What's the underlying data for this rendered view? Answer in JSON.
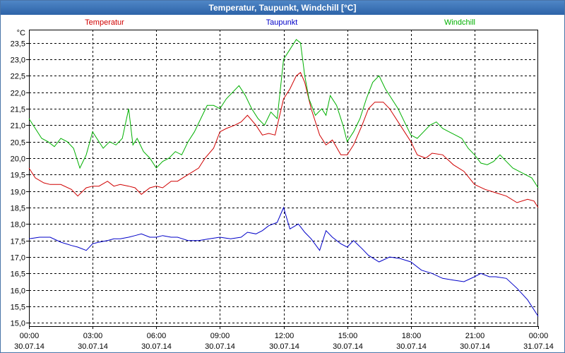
{
  "window": {
    "title": "Temperatur, Taupunkt, Windchill [°C]"
  },
  "colors": {
    "temperatur": "#d00000",
    "taupunkt": "#0000c8",
    "windchill": "#00b000",
    "grid": "#000000",
    "axis": "#000000"
  },
  "chart_data": {
    "type": "line",
    "title": "Temperatur, Taupunkt, Windchill [°C]",
    "ylabel": "°C",
    "ylim": [
      14.9,
      23.9
    ],
    "yticks": [
      "15,0",
      "15,5",
      "16,0",
      "16,5",
      "17,0",
      "17,5",
      "18,0",
      "18,5",
      "19,0",
      "19,5",
      "20,0",
      "20,5",
      "21,0",
      "21,5",
      "22,0",
      "22,5",
      "23,0",
      "23,5"
    ],
    "xlim": [
      0,
      24
    ],
    "xticks": [
      {
        "time": "00:00",
        "date": "30.07.14"
      },
      {
        "time": "03:00",
        "date": "30.07.14"
      },
      {
        "time": "06:00",
        "date": "30.07.14"
      },
      {
        "time": "09:00",
        "date": "30.07.14"
      },
      {
        "time": "12:00",
        "date": "30.07.14"
      },
      {
        "time": "15:00",
        "date": "30.07.14"
      },
      {
        "time": "18:00",
        "date": "30.07.14"
      },
      {
        "time": "21:00",
        "date": "30.07.14"
      },
      {
        "time": "00:00",
        "date": "31.07.14"
      }
    ],
    "series": [
      {
        "name": "Temperatur",
        "x": [
          0,
          0.3,
          0.7,
          1,
          1.5,
          2,
          2.3,
          2.7,
          3,
          3.3,
          3.7,
          4,
          4.3,
          4.7,
          5,
          5.3,
          5.7,
          6,
          6.3,
          6.7,
          7,
          7.5,
          8,
          8.3,
          8.7,
          9,
          9.3,
          9.7,
          10,
          10.3,
          10.7,
          11,
          11.3,
          11.6,
          12,
          12.3,
          12.6,
          12.8,
          13,
          13.3,
          13.7,
          14,
          14.3,
          14.7,
          15,
          15.3,
          15.7,
          16,
          16.3,
          16.7,
          17,
          17.5,
          18,
          18.3,
          18.7,
          19,
          19.5,
          20,
          20.5,
          21,
          21.5,
          22,
          22.5,
          23,
          23.5,
          23.8,
          24
        ],
        "values": [
          19.7,
          19.4,
          19.25,
          19.2,
          19.2,
          19.05,
          18.85,
          19.1,
          19.15,
          19.15,
          19.3,
          19.15,
          19.2,
          19.15,
          19.1,
          18.9,
          19.1,
          19.15,
          19.1,
          19.3,
          19.3,
          19.5,
          19.7,
          20.0,
          20.3,
          20.8,
          20.9,
          21.0,
          21.1,
          21.3,
          21.0,
          20.7,
          20.75,
          20.7,
          21.8,
          22.1,
          22.5,
          22.6,
          22.3,
          21.5,
          20.7,
          20.4,
          20.55,
          20.1,
          20.1,
          20.4,
          21.0,
          21.5,
          21.7,
          21.7,
          21.5,
          21.0,
          20.5,
          20.1,
          20.0,
          20.15,
          20.1,
          19.8,
          19.6,
          19.2,
          19.05,
          18.95,
          18.85,
          18.65,
          18.75,
          18.7,
          18.5
        ]
      },
      {
        "name": "Taupunkt",
        "x": [
          0,
          0.5,
          1,
          1.5,
          2,
          2.3,
          2.7,
          3,
          3.3,
          3.7,
          4,
          4.3,
          4.7,
          5,
          5.3,
          5.7,
          6,
          6.3,
          6.7,
          7,
          7.5,
          8,
          8.5,
          9,
          9.5,
          10,
          10.3,
          10.7,
          11,
          11.3,
          11.7,
          12,
          12.3,
          12.7,
          13,
          13.3,
          13.7,
          14,
          14.3,
          14.7,
          15,
          15.3,
          15.7,
          16,
          16.5,
          17,
          17.5,
          18,
          18.5,
          19,
          19.5,
          20,
          20.5,
          21,
          21.3,
          21.7,
          22,
          22.5,
          23,
          23.5,
          24
        ],
        "values": [
          17.55,
          17.6,
          17.6,
          17.45,
          17.35,
          17.3,
          17.2,
          17.4,
          17.45,
          17.5,
          17.55,
          17.55,
          17.6,
          17.65,
          17.7,
          17.6,
          17.6,
          17.65,
          17.6,
          17.6,
          17.5,
          17.5,
          17.55,
          17.6,
          17.55,
          17.6,
          17.75,
          17.7,
          17.8,
          17.95,
          18.05,
          18.5,
          17.85,
          18.0,
          17.75,
          17.55,
          17.2,
          17.8,
          17.6,
          17.4,
          17.3,
          17.5,
          17.25,
          17.05,
          16.85,
          17.0,
          16.95,
          16.85,
          16.6,
          16.5,
          16.35,
          16.3,
          16.25,
          16.4,
          16.5,
          16.4,
          16.4,
          16.35,
          16.05,
          15.7,
          15.2
        ]
      },
      {
        "name": "Windchill",
        "x": [
          0,
          0.3,
          0.6,
          0.9,
          1.2,
          1.5,
          1.8,
          2.1,
          2.4,
          2.7,
          3,
          3.2,
          3.5,
          3.8,
          4.1,
          4.4,
          4.7,
          4.9,
          5.1,
          5.4,
          5.7,
          6,
          6.3,
          6.6,
          6.9,
          7.2,
          7.5,
          7.8,
          8.1,
          8.4,
          8.7,
          9,
          9.3,
          9.6,
          9.9,
          10.2,
          10.5,
          10.8,
          11.1,
          11.4,
          11.7,
          12,
          12.2,
          12.4,
          12.6,
          12.8,
          13,
          13.2,
          13.5,
          13.8,
          14,
          14.2,
          14.5,
          14.8,
          15,
          15.3,
          15.6,
          15.9,
          16.2,
          16.5,
          16.8,
          17.1,
          17.4,
          17.7,
          18,
          18.3,
          18.6,
          18.9,
          19.2,
          19.5,
          19.8,
          20.1,
          20.4,
          20.7,
          21,
          21.3,
          21.6,
          21.9,
          22.2,
          22.5,
          22.8,
          23.1,
          23.4,
          23.7,
          24
        ],
        "values": [
          21.2,
          20.9,
          20.6,
          20.5,
          20.35,
          20.6,
          20.5,
          20.3,
          19.7,
          20.1,
          20.8,
          20.6,
          20.3,
          20.5,
          20.4,
          20.6,
          21.5,
          20.4,
          20.6,
          20.2,
          20.0,
          19.7,
          19.9,
          20.0,
          20.2,
          20.1,
          20.5,
          20.8,
          21.2,
          21.6,
          21.6,
          21.5,
          21.8,
          22.0,
          22.2,
          21.9,
          21.5,
          21.2,
          21.0,
          21.4,
          21.2,
          23.0,
          23.2,
          23.4,
          23.6,
          23.5,
          22.5,
          21.8,
          21.3,
          21.5,
          21.3,
          21.9,
          21.6,
          21.0,
          20.5,
          20.8,
          21.2,
          21.8,
          22.3,
          22.5,
          22.1,
          21.8,
          21.5,
          21.1,
          20.7,
          20.6,
          20.8,
          21.0,
          21.1,
          20.9,
          20.8,
          20.7,
          20.6,
          20.3,
          20.1,
          19.85,
          19.8,
          19.9,
          20.1,
          19.9,
          19.7,
          19.6,
          19.5,
          19.4,
          19.1
        ]
      }
    ]
  }
}
